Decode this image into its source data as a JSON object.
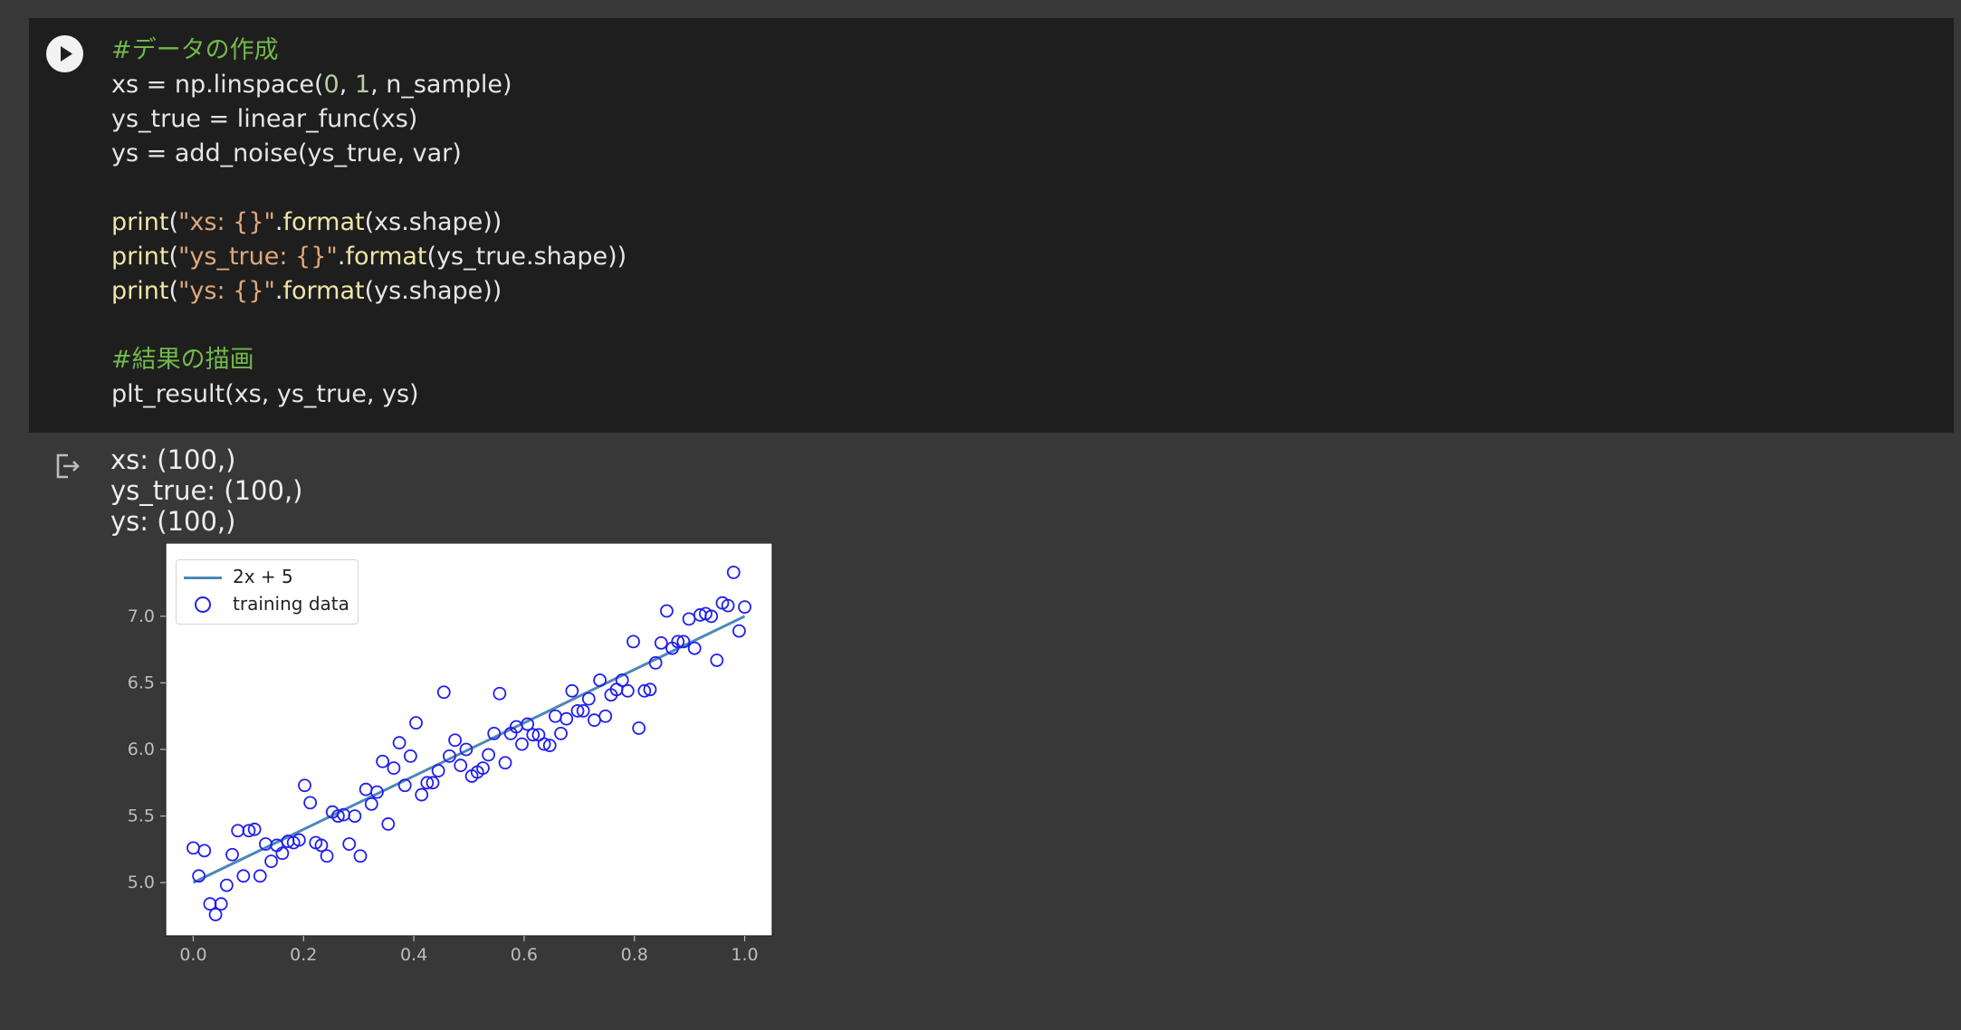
{
  "cell": {
    "code_lines": [
      [
        {
          "t": "#データの作成",
          "c": "cm"
        }
      ],
      [
        {
          "t": "xs = np.linspace("
        },
        {
          "t": "0",
          "c": "num"
        },
        {
          "t": ", "
        },
        {
          "t": "1",
          "c": "num"
        },
        {
          "t": ", n_sample)"
        }
      ],
      [
        {
          "t": "ys_true = linear_func(xs)"
        }
      ],
      [
        {
          "t": "ys = add_noise(ys_true, var)"
        }
      ],
      [],
      [
        {
          "t": "print",
          "c": "fn"
        },
        {
          "t": "("
        },
        {
          "t": "\"xs: {}\"",
          "c": "str"
        },
        {
          "t": "."
        },
        {
          "t": "format",
          "c": "fn"
        },
        {
          "t": "(xs.shape))"
        }
      ],
      [
        {
          "t": "print",
          "c": "fn"
        },
        {
          "t": "("
        },
        {
          "t": "\"ys_true: {}\"",
          "c": "str"
        },
        {
          "t": "."
        },
        {
          "t": "format",
          "c": "fn"
        },
        {
          "t": "(ys_true.shape))"
        }
      ],
      [
        {
          "t": "print",
          "c": "fn"
        },
        {
          "t": "("
        },
        {
          "t": "\"ys: {}\"",
          "c": "str"
        },
        {
          "t": "."
        },
        {
          "t": "format",
          "c": "fn"
        },
        {
          "t": "(ys.shape))"
        }
      ],
      [],
      [
        {
          "t": "#結果の描画",
          "c": "cm"
        }
      ],
      [
        {
          "t": "plt_result(xs, ys_true, ys)"
        }
      ]
    ],
    "run_icon": "play-icon",
    "output_icon": "output-redirect-icon"
  },
  "output": {
    "lines": [
      "xs: (100,)",
      "ys_true: (100,)",
      "ys: (100,)"
    ]
  },
  "chart_data": {
    "type": "scatter",
    "legend_position": "upper-left",
    "xlim": [
      -0.05,
      1.05
    ],
    "ylim": [
      4.6,
      7.55
    ],
    "xticks": [
      "0.0",
      "0.2",
      "0.4",
      "0.6",
      "0.8",
      "1.0"
    ],
    "yticks": [
      "5.0",
      "5.5",
      "6.0",
      "6.5",
      "7.0"
    ],
    "line": {
      "label": "2x + 5",
      "x": [
        0,
        1
      ],
      "y": [
        5.0,
        7.0
      ],
      "color": "#4e86b8"
    },
    "points": {
      "label": "training data",
      "color": "#1f1ff0",
      "x": [
        0.0,
        0.0101,
        0.0202,
        0.0303,
        0.0404,
        0.0505,
        0.0606,
        0.0707,
        0.0808,
        0.0909,
        0.101,
        0.1111,
        0.1212,
        0.1313,
        0.1414,
        0.1515,
        0.1616,
        0.1717,
        0.1818,
        0.1919,
        0.202,
        0.2121,
        0.2222,
        0.2323,
        0.2424,
        0.2525,
        0.2626,
        0.2727,
        0.2828,
        0.2929,
        0.303,
        0.3131,
        0.3232,
        0.3333,
        0.3434,
        0.3535,
        0.3636,
        0.3737,
        0.3838,
        0.3939,
        0.404,
        0.4141,
        0.4242,
        0.4343,
        0.4444,
        0.4545,
        0.4646,
        0.4747,
        0.4848,
        0.4949,
        0.5051,
        0.5152,
        0.5253,
        0.5354,
        0.5455,
        0.5556,
        0.5657,
        0.5758,
        0.5859,
        0.596,
        0.6061,
        0.6162,
        0.6263,
        0.6364,
        0.6465,
        0.6566,
        0.6667,
        0.6768,
        0.6869,
        0.697,
        0.7071,
        0.7172,
        0.7273,
        0.7374,
        0.7475,
        0.7576,
        0.7677,
        0.7778,
        0.7879,
        0.798,
        0.8081,
        0.8182,
        0.8283,
        0.8384,
        0.8485,
        0.8586,
        0.8687,
        0.8788,
        0.8889,
        0.899,
        0.9091,
        0.9192,
        0.9293,
        0.9394,
        0.9495,
        0.9596,
        0.9697,
        0.9798,
        0.9899,
        1.0
      ],
      "y": [
        5.26,
        5.05,
        5.24,
        4.84,
        4.76,
        4.84,
        4.98,
        5.21,
        5.39,
        5.05,
        5.39,
        5.4,
        5.05,
        5.29,
        5.16,
        5.28,
        5.22,
        5.31,
        5.3,
        5.32,
        5.73,
        5.6,
        5.3,
        5.28,
        5.2,
        5.53,
        5.5,
        5.51,
        5.29,
        5.5,
        5.2,
        5.7,
        5.59,
        5.68,
        5.91,
        5.44,
        5.86,
        6.05,
        5.73,
        5.95,
        6.2,
        5.66,
        5.75,
        5.75,
        5.84,
        6.43,
        5.95,
        6.07,
        5.88,
        6.0,
        5.8,
        5.83,
        5.86,
        5.96,
        6.12,
        6.42,
        5.9,
        6.12,
        6.17,
        6.04,
        6.19,
        6.11,
        6.11,
        6.04,
        6.03,
        6.25,
        6.12,
        6.23,
        6.44,
        6.29,
        6.29,
        6.38,
        6.22,
        6.52,
        6.25,
        6.41,
        6.45,
        6.52,
        6.44,
        6.81,
        6.16,
        6.44,
        6.45,
        6.65,
        6.8,
        7.04,
        6.76,
        6.81,
        6.81,
        6.98,
        6.76,
        7.01,
        7.02,
        7.0,
        6.67,
        7.1,
        7.08,
        7.33,
        6.89,
        7.07
      ]
    }
  }
}
